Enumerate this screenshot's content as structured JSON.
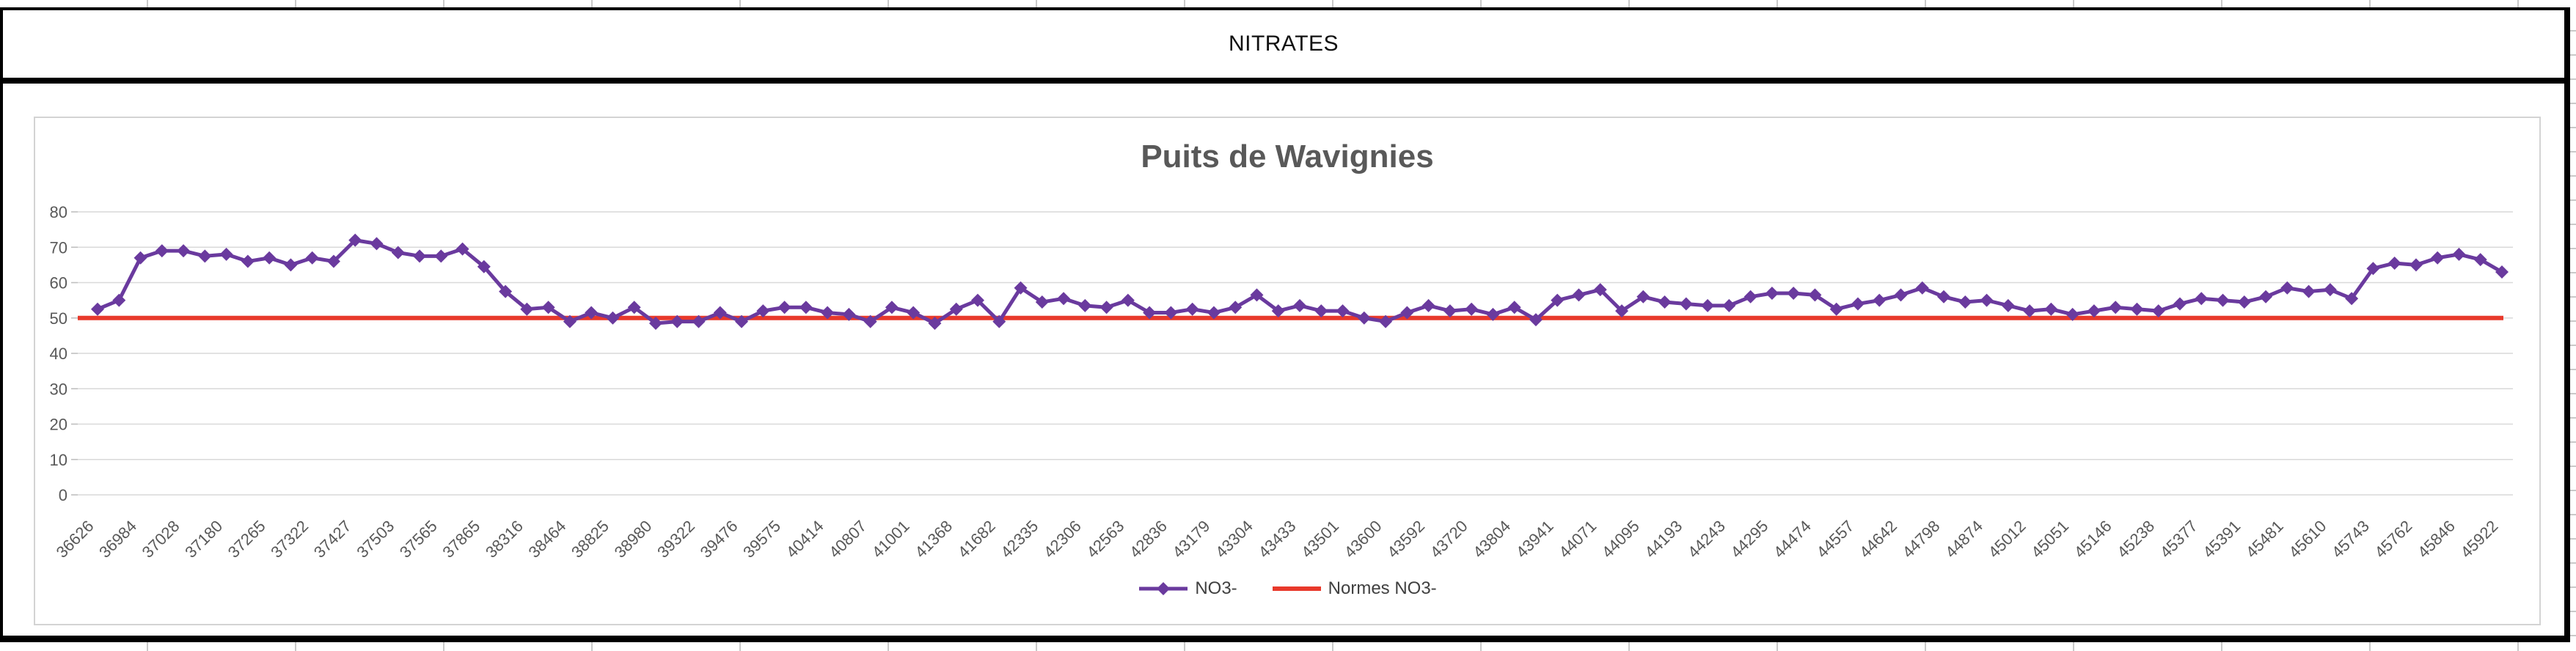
{
  "sheet": {
    "header_title": "NITRATES"
  },
  "chart_data": {
    "type": "line",
    "title": "Puits de Wavignies",
    "xlabel": "",
    "ylabel": "",
    "ylim": [
      0,
      80
    ],
    "y_ticks": [
      0,
      10,
      20,
      30,
      40,
      50,
      60,
      70,
      80
    ],
    "grid": "horizontal",
    "gridline_color": "#d9d9d9",
    "axis_text_color": "#595959",
    "legend_position": "bottom-center",
    "label_every": 2,
    "x_labels": [
      "36626",
      "36984",
      "37028",
      "37180",
      "37265",
      "37322",
      "37427",
      "37503",
      "37565",
      "37865",
      "38316",
      "38464",
      "38825",
      "38980",
      "39322",
      "39476",
      "39575",
      "40414",
      "40807",
      "41001",
      "41368",
      "41682",
      "42335",
      "42306",
      "42563",
      "42836",
      "43179",
      "43304",
      "43433",
      "43501",
      "43600",
      "43592",
      "43720",
      "43804",
      "43941",
      "44071",
      "44095",
      "44193",
      "44243",
      "44295",
      "44474",
      "44557",
      "44642",
      "44798",
      "44874",
      "45012",
      "45051",
      "45146",
      "45238",
      "45377",
      "45391",
      "45481",
      "45610",
      "45743",
      "45762",
      "45846",
      "45922"
    ],
    "series": [
      {
        "name": "NO3-",
        "color": "#6a3a9e",
        "marker": "diamond",
        "values": [
          52.5,
          55,
          67,
          69,
          69,
          67.5,
          68,
          66,
          67,
          65,
          67,
          66,
          72,
          71,
          68.5,
          67.5,
          67.5,
          69.5,
          64.5,
          57.5,
          52.5,
          53,
          49,
          51.5,
          50,
          53,
          48.5,
          49,
          49,
          51.5,
          49,
          52,
          53,
          53,
          51.5,
          51,
          49,
          53,
          51.5,
          48.5,
          52.5,
          55,
          49,
          58.5,
          54.5,
          55.5,
          53.5,
          53,
          55,
          51.5,
          51.5,
          52.5,
          51.5,
          53,
          56.5,
          52,
          53.5,
          52,
          52,
          50,
          49,
          51.5,
          53.5,
          52,
          52.5,
          51,
          53,
          49.5,
          55,
          56.5,
          58,
          52,
          56,
          54.5,
          54,
          53.5,
          53.5,
          56,
          57,
          57,
          56.5,
          52.5,
          54,
          55,
          56.5,
          58.5,
          56,
          54.5,
          55,
          53.5,
          52,
          52.5,
          51,
          52,
          53,
          52.5,
          52,
          54,
          55.5,
          55,
          54.5,
          56,
          58.5,
          57.5,
          58,
          55.5,
          64,
          65.5,
          65,
          67,
          68,
          66.5,
          63
        ]
      },
      {
        "name": "Normes NO3-",
        "color": "#e8392b",
        "constant_value": 50
      }
    ]
  }
}
